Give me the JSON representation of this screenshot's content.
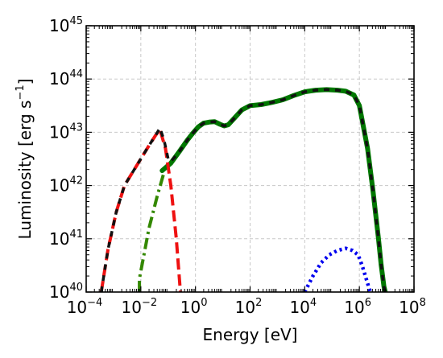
{
  "chart_data": {
    "type": "line",
    "xlabel": "Energy [eV]",
    "ylabel": "Luminosity [erg s$^{-1}$]",
    "ylabel_parts": {
      "main": "Luminosity [erg s",
      "sup": "−1",
      "close": "]"
    },
    "x_scale": "log",
    "y_scale": "log",
    "xlim_log10": [
      -4,
      8
    ],
    "ylim_log10": [
      40,
      45
    ],
    "x_ticks": [
      {
        "base": "10",
        "exp": "−4",
        "value": -4
      },
      {
        "base": "10",
        "exp": "−2",
        "value": -2
      },
      {
        "base": "10",
        "exp": "0",
        "value": 0
      },
      {
        "base": "10",
        "exp": "2",
        "value": 2
      },
      {
        "base": "10",
        "exp": "4",
        "value": 4
      },
      {
        "base": "10",
        "exp": "6",
        "value": 6
      },
      {
        "base": "10",
        "exp": "8",
        "value": 8
      }
    ],
    "y_ticks": [
      {
        "base": "10",
        "exp": "40",
        "value": 40
      },
      {
        "base": "10",
        "exp": "41",
        "value": 41
      },
      {
        "base": "10",
        "exp": "42",
        "value": 42
      },
      {
        "base": "10",
        "exp": "43",
        "value": 43
      },
      {
        "base": "10",
        "exp": "44",
        "value": 44
      },
      {
        "base": "10",
        "exp": "45",
        "value": 45
      }
    ],
    "grid": true,
    "series": [
      {
        "color": "#007700",
        "style": "solid-thick",
        "log10_x": [
          -1.22,
          -0.9,
          -0.6,
          -0.3,
          -0.1,
          0.1,
          0.3,
          0.5,
          0.7,
          0.9,
          1.05,
          1.2,
          1.4,
          1.7,
          2.0,
          2.4,
          2.8,
          3.2,
          3.6,
          4.0,
          4.4,
          4.8,
          5.2,
          5.5,
          5.8,
          6.0,
          6.3,
          6.5,
          6.7,
          6.8,
          6.9,
          6.95
        ],
        "log10_y": [
          42.28,
          42.42,
          42.63,
          42.85,
          42.98,
          43.1,
          43.17,
          43.19,
          43.2,
          43.15,
          43.12,
          43.14,
          43.25,
          43.42,
          43.5,
          43.52,
          43.56,
          43.61,
          43.69,
          43.76,
          43.79,
          43.8,
          43.79,
          43.77,
          43.7,
          43.5,
          42.7,
          41.9,
          41.0,
          40.5,
          40.1,
          40.0
        ]
      },
      {
        "color": "#ee1111",
        "style": "dashed",
        "log10_x": [
          -3.45,
          -3.2,
          -2.9,
          -2.6,
          -2.3,
          -2.0,
          -1.7,
          -1.45,
          -1.3,
          -1.1,
          -0.9,
          -0.7,
          -0.55
        ],
        "log10_y": [
          40.0,
          40.8,
          41.5,
          42.0,
          42.25,
          42.5,
          42.75,
          42.95,
          43.05,
          42.7,
          42.0,
          41.0,
          40.0
        ]
      },
      {
        "color": "#338800",
        "style": "dash-dot",
        "log10_x": [
          -2.05,
          -2.05,
          -1.7,
          -1.4,
          -1.15
        ],
        "log10_y": [
          40.0,
          40.25,
          41.2,
          41.8,
          42.25
        ]
      },
      {
        "color": "#0000ee",
        "style": "dotted",
        "log10_x": [
          4.0,
          4.3,
          4.6,
          4.9,
          5.2,
          5.5,
          5.75,
          5.95,
          6.1,
          6.25,
          6.4
        ],
        "log10_y": [
          40.0,
          40.3,
          40.55,
          40.7,
          40.78,
          40.82,
          40.78,
          40.7,
          40.5,
          40.25,
          40.0
        ]
      },
      {
        "color": "#111111",
        "style": "total",
        "log10_x": [
          -3.45,
          -3.2,
          -2.9,
          -2.6,
          -2.3,
          -2.0,
          -1.7,
          -1.45,
          -1.3,
          -1.15,
          -1.0,
          -0.9,
          -0.6,
          -0.3,
          -0.1,
          0.1,
          0.3,
          0.5,
          0.7,
          0.9,
          1.05,
          1.2,
          1.4,
          1.7,
          2.0,
          2.4,
          2.8,
          3.2,
          3.6,
          4.0,
          4.4,
          4.8,
          5.2,
          5.5,
          5.8,
          6.0,
          6.3,
          6.5,
          6.7,
          6.8,
          6.9,
          6.95
        ],
        "log10_y": [
          40.0,
          40.8,
          41.5,
          42.0,
          42.25,
          42.5,
          42.75,
          42.95,
          43.08,
          42.85,
          42.5,
          42.45,
          42.63,
          42.85,
          42.98,
          43.1,
          43.17,
          43.19,
          43.2,
          43.15,
          43.12,
          43.14,
          43.25,
          43.42,
          43.5,
          43.52,
          43.56,
          43.61,
          43.69,
          43.76,
          43.79,
          43.8,
          43.79,
          43.77,
          43.7,
          43.5,
          42.7,
          41.9,
          41.0,
          40.5,
          40.1,
          40.0
        ]
      }
    ]
  }
}
